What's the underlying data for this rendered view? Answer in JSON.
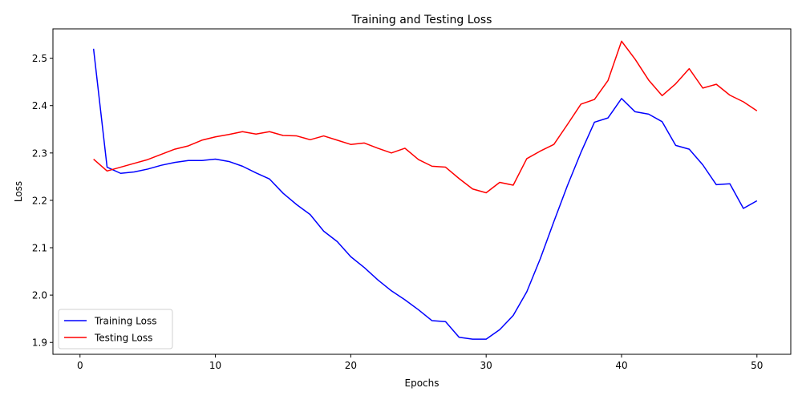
{
  "chart_data": {
    "type": "line",
    "title": "Training and Testing Loss",
    "xlabel": "Epochs",
    "ylabel": "Loss",
    "xlim": [
      -2,
      52.5
    ],
    "ylim": [
      1.875,
      2.562
    ],
    "xticks": [
      0,
      10,
      20,
      30,
      40,
      50
    ],
    "yticks": [
      1.9,
      2.0,
      2.1,
      2.2,
      2.3,
      2.4,
      2.5
    ],
    "grid": false,
    "legend_position": "lower left",
    "x": [
      1,
      2,
      3,
      4,
      5,
      6,
      7,
      8,
      9,
      10,
      11,
      12,
      13,
      14,
      15,
      16,
      17,
      18,
      19,
      20,
      21,
      22,
      23,
      24,
      25,
      26,
      27,
      28,
      29,
      30,
      31,
      32,
      33,
      34,
      35,
      36,
      37,
      38,
      39,
      40,
      41,
      42,
      43,
      44,
      45,
      46,
      47,
      48,
      49,
      50
    ],
    "series": [
      {
        "name": "Training Loss",
        "color": "#0000ff",
        "values": [
          2.52,
          2.27,
          2.257,
          2.26,
          2.266,
          2.274,
          2.28,
          2.284,
          2.284,
          2.287,
          2.282,
          2.272,
          2.258,
          2.245,
          2.215,
          2.191,
          2.17,
          2.135,
          2.113,
          2.081,
          2.058,
          2.032,
          2.009,
          1.99,
          1.969,
          1.946,
          1.944,
          1.911,
          1.907,
          1.907,
          1.927,
          1.957,
          2.007,
          2.077,
          2.155,
          2.231,
          2.301,
          2.365,
          2.374,
          2.415,
          2.387,
          2.382,
          2.366,
          2.316,
          2.308,
          2.275,
          2.233,
          2.235,
          2.183,
          2.199
        ]
      },
      {
        "name": "Testing Loss",
        "color": "#ff0000",
        "values": [
          2.287,
          2.262,
          2.27,
          2.278,
          2.286,
          2.297,
          2.308,
          2.315,
          2.327,
          2.334,
          2.339,
          2.345,
          2.34,
          2.345,
          2.337,
          2.336,
          2.328,
          2.336,
          2.327,
          2.318,
          2.321,
          2.31,
          2.3,
          2.31,
          2.286,
          2.272,
          2.27,
          2.246,
          2.224,
          2.216,
          2.238,
          2.232,
          2.288,
          2.304,
          2.318,
          2.36,
          2.403,
          2.413,
          2.453,
          2.536,
          2.498,
          2.454,
          2.421,
          2.446,
          2.478,
          2.437,
          2.445,
          2.422,
          2.408,
          2.389
        ]
      }
    ]
  }
}
